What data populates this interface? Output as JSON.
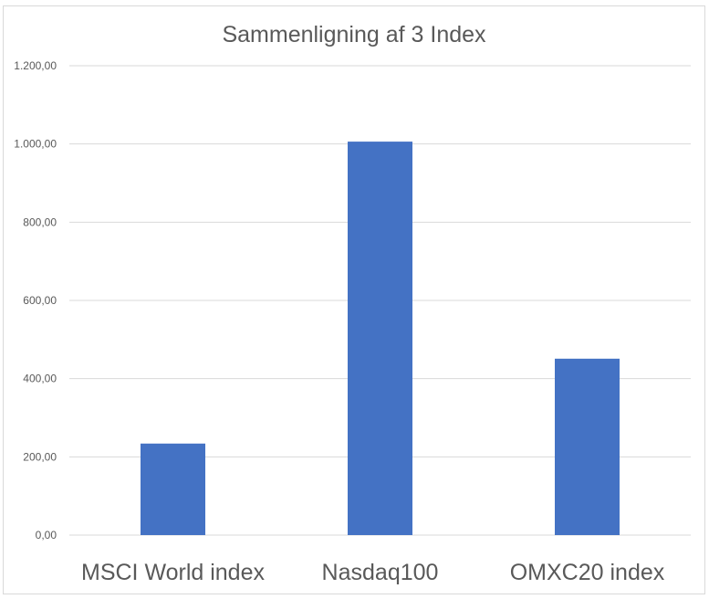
{
  "chart_data": {
    "type": "bar",
    "title": "Sammenligning af 3 Index",
    "categories": [
      "MSCI World index",
      "Nasdaq100",
      "OMXC20 index"
    ],
    "values": [
      234,
      1006,
      451
    ],
    "ylim": [
      0,
      1200
    ],
    "yticks": [
      "0,00",
      "200,00",
      "400,00",
      "600,00",
      "800,00",
      "1.000,00",
      "1.200,00"
    ],
    "ytick_values": [
      0,
      200,
      400,
      600,
      800,
      1000,
      1200
    ],
    "bar_color": "#4472c4",
    "grid": true,
    "legend": "none",
    "xlabel": "",
    "ylabel": ""
  }
}
